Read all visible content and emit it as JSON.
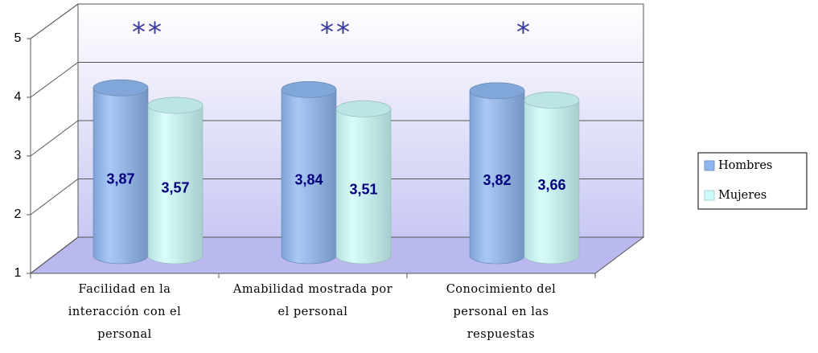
{
  "chart_data": {
    "type": "bar3d",
    "categories": [
      "Facilidad en la interacción con el personal",
      "Amabilidad mostrada por el personal",
      "Conocimiento del personal en las respuestas"
    ],
    "series": [
      {
        "name": "Hombres",
        "color": "#8db6f0",
        "values": [
          3.87,
          3.84,
          3.82
        ],
        "value_labels": [
          "3,87",
          "3,84",
          "3,82"
        ]
      },
      {
        "name": "Mujeres",
        "color": "#ccfcfa",
        "values": [
          3.57,
          3.51,
          3.66
        ],
        "value_labels": [
          "3,57",
          "3,51",
          "3,66"
        ]
      }
    ],
    "annotations": [
      "**",
      "**",
      "*"
    ],
    "ylim": [
      1,
      5
    ],
    "yticks": [
      1,
      2,
      3,
      4,
      5
    ],
    "grid": true,
    "legend": "right"
  }
}
